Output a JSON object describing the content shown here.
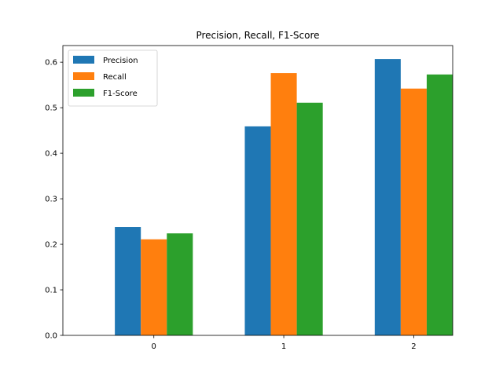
{
  "chart_data": {
    "type": "bar",
    "title": "Precision, Recall, F1-Score",
    "xlabel": "",
    "ylabel": "",
    "categories": [
      "0",
      "1",
      "2"
    ],
    "series": [
      {
        "name": "Precision",
        "color": "#1f77b4",
        "values": [
          0.238,
          0.459,
          0.607
        ]
      },
      {
        "name": "Recall",
        "color": "#ff7f0e",
        "values": [
          0.211,
          0.576,
          0.542
        ]
      },
      {
        "name": "F1-Score",
        "color": "#2ca02c",
        "values": [
          0.224,
          0.511,
          0.573
        ]
      }
    ],
    "ylim": [
      0,
      0.6365
    ],
    "yticks": [
      0.0,
      0.1,
      0.2,
      0.3,
      0.4,
      0.5,
      0.6
    ],
    "ytick_labels": [
      "0.0",
      "0.1",
      "0.2",
      "0.3",
      "0.4",
      "0.5",
      "0.6"
    ],
    "grid": false,
    "legend_position": "top-left"
  }
}
